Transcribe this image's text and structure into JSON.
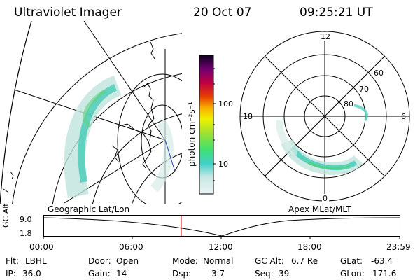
{
  "header": {
    "instrument": "Ultraviolet Imager",
    "date": "20 Oct 07",
    "time": "09:25:21 UT"
  },
  "colorbar": {
    "unit_label": "photon cm⁻²s⁻¹",
    "ticks": [
      "100",
      "10"
    ]
  },
  "left_map": {
    "label": "Geographic Lat/Lon"
  },
  "right_map": {
    "label": "Apex MLat/MLT",
    "mlt_labels": {
      "top": "12",
      "bottom": "0",
      "left": "18",
      "right": "6"
    },
    "lat_labels": [
      "60",
      "70",
      "80"
    ]
  },
  "altitude_plot": {
    "ylabel": "GC Alt",
    "y_top": "9.0",
    "y_bottom": "1.8",
    "x_ticks": [
      "00:00",
      "06:00",
      "12:00",
      "18:00",
      "23:59"
    ]
  },
  "status": {
    "filter_label": "Flt:",
    "filter": "LBHL",
    "ip_label": "IP:",
    "ip": "36.0",
    "door_label": "Door:",
    "door": "Open",
    "gain_label": "Gain:",
    "gain": "14",
    "mode_label": "Mode:",
    "mode": "Normal",
    "dsp_label": "Dsp:",
    "dsp": "3.7",
    "gcalt_label": "GC Alt:",
    "gcalt": "6.7 Re",
    "seq_label": "Seq:",
    "seq": "39",
    "glat_label": "GLat:",
    "glat": "-63.4",
    "glon_label": "GLon:",
    "glon": "171.6"
  },
  "colors": {
    "current_time_marker": "#e00000",
    "aurora_teal": "#3fc9b4",
    "aurora_light": "#bfe3dc"
  }
}
